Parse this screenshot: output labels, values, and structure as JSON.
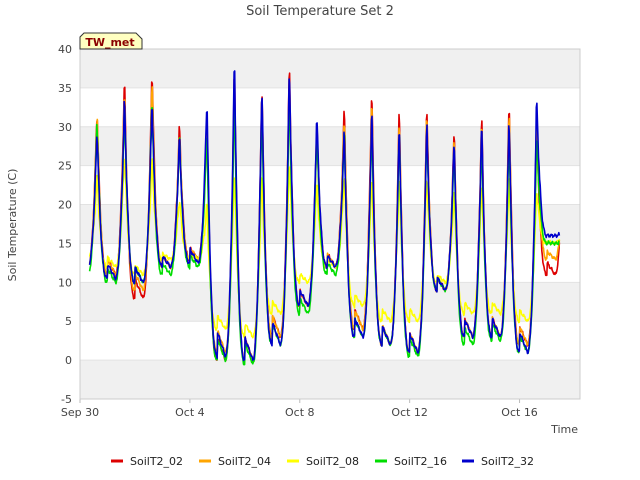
{
  "chart_data": {
    "type": "line",
    "title": "Soil Temperature Set 2",
    "xlabel": "Time",
    "ylabel": "Soil Temperature (C)",
    "badge": "TW_met",
    "xlim": [
      0,
      18.2
    ],
    "ylim": [
      -5,
      40
    ],
    "yticks": [
      -5,
      0,
      5,
      10,
      15,
      20,
      25,
      30,
      35,
      40
    ],
    "xticks": [
      {
        "value": 0,
        "label": "Sep 30"
      },
      {
        "value": 4,
        "label": "Oct 4"
      },
      {
        "value": 8,
        "label": "Oct 8"
      },
      {
        "value": 12,
        "label": "Oct 12"
      },
      {
        "value": 16,
        "label": "Oct 16"
      }
    ],
    "grid": "horizontal-bands",
    "legend_position": "bottom",
    "days": [
      "Sep 30",
      "Oct 1",
      "Oct 2",
      "Oct 3",
      "Oct 4",
      "Oct 5",
      "Oct 6",
      "Oct 7",
      "Oct 8",
      "Oct 9",
      "Oct 10",
      "Oct 11",
      "Oct 12",
      "Oct 13",
      "Oct 14",
      "Oct 15",
      "Oct 16",
      "Oct 17"
    ],
    "series": [
      {
        "name": "SoilT2_02",
        "color": "#dd0000",
        "daily_min": [
          12,
          11,
          8,
          12,
          13,
          0,
          0,
          3,
          7,
          12,
          4,
          2,
          1,
          9,
          3,
          3,
          2,
          11
        ],
        "daily_max": [
          32.5,
          36.5,
          38,
          30.5,
          31,
          38,
          36,
          38.5,
          31,
          33,
          35.5,
          33,
          33,
          30,
          32,
          34,
          31,
          30
        ]
      },
      {
        "name": "SoilT2_04",
        "color": "#ffa500",
        "daily_min": [
          12,
          11,
          9,
          12,
          13,
          1,
          0,
          3,
          7,
          12,
          4,
          2,
          1,
          9,
          3,
          3,
          2,
          13
        ],
        "daily_max": [
          32,
          35,
          36.5,
          29.5,
          30.5,
          36.5,
          35,
          37,
          30,
          32,
          34,
          32,
          32,
          29.5,
          31,
          33,
          30.5,
          25
        ]
      },
      {
        "name": "SoilT2_08",
        "color": "#ffff00",
        "daily_min": [
          13,
          12,
          11,
          13,
          13,
          4,
          3,
          6,
          10,
          12,
          7,
          5,
          5,
          10,
          6,
          6,
          5,
          15
        ],
        "daily_max": [
          24,
          27,
          26,
          21,
          20,
          25,
          24,
          26,
          23,
          24,
          24,
          24,
          24,
          22,
          23,
          24,
          22,
          18
        ]
      },
      {
        "name": "SoilT2_16",
        "color": "#00dd00",
        "daily_min": [
          11,
          10,
          10,
          11,
          12,
          0,
          -0.5,
          2,
          6,
          11,
          3,
          2,
          0.5,
          9,
          2,
          2.5,
          1,
          15
        ],
        "daily_max": [
          31,
          33,
          34,
          29,
          30,
          35,
          33,
          35,
          30,
          30,
          31,
          30,
          30,
          28,
          29,
          30,
          29,
          16
        ]
      },
      {
        "name": "SoilT2_32",
        "color": "#0000cc",
        "daily_min": [
          12,
          10.5,
          10,
          12,
          12.5,
          0.5,
          0,
          2,
          7,
          12,
          3,
          2,
          1,
          9,
          3,
          3,
          1,
          16
        ],
        "daily_max": [
          30,
          34,
          34,
          29,
          34,
          39.5,
          36,
          38,
          32,
          30,
          33,
          31,
          31,
          29,
          31,
          32,
          34,
          16.5
        ]
      }
    ]
  }
}
